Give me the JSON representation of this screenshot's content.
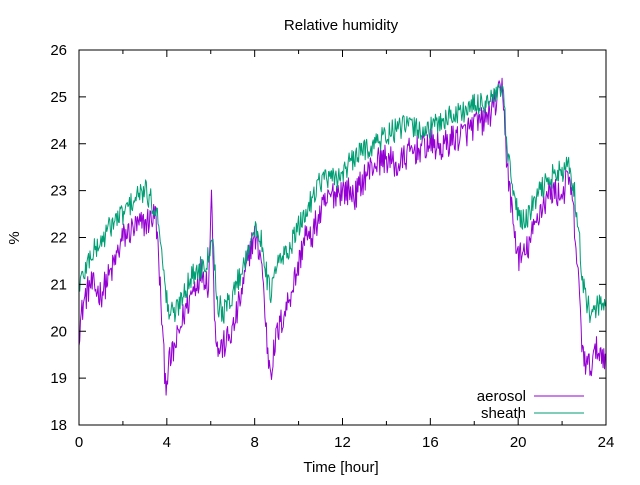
{
  "chart_data": {
    "type": "line",
    "title": "Relative humidity",
    "xlabel": "Time [hour]",
    "ylabel": "%",
    "xlim": [
      0,
      24
    ],
    "ylim": [
      18,
      26
    ],
    "xticks": [
      0,
      4,
      8,
      12,
      16,
      20,
      24
    ],
    "yticks": [
      18,
      19,
      20,
      21,
      22,
      23,
      24,
      25,
      26
    ],
    "grid": false,
    "legend_position": "bottom-right",
    "series": [
      {
        "name": "aerosol",
        "color": "#9400d3",
        "x": [
          0,
          0.2,
          0.5,
          1.0,
          1.5,
          2.0,
          2.5,
          3.0,
          3.5,
          3.75,
          3.85,
          3.95,
          4.1,
          4.4,
          4.8,
          5.2,
          5.6,
          5.9,
          6.05,
          6.15,
          6.3,
          6.6,
          7.0,
          7.5,
          7.8,
          8.0,
          8.3,
          8.5,
          8.6,
          8.75,
          9.0,
          9.5,
          10.0,
          10.3,
          10.5,
          10.8,
          11.2,
          11.5,
          11.8,
          12.2,
          12.6,
          13.0,
          13.5,
          14.0,
          14.5,
          15.0,
          15.5,
          16.0,
          16.5,
          17.0,
          17.5,
          18.0,
          18.5,
          19.0,
          19.3,
          19.5,
          19.8,
          20.0,
          20.3,
          20.6,
          21.0,
          21.5,
          22.0,
          22.3,
          22.5,
          22.7,
          22.9,
          23.1,
          23.3,
          23.6,
          24.0
        ],
        "y": [
          20.0,
          20.6,
          21.0,
          20.8,
          21.3,
          22.0,
          22.2,
          22.3,
          22.5,
          20.5,
          19.5,
          18.9,
          19.3,
          19.7,
          20.4,
          20.9,
          21.3,
          21.0,
          23.1,
          20.6,
          19.6,
          19.7,
          20.0,
          21.0,
          21.8,
          22.0,
          21.6,
          20.2,
          19.5,
          19.2,
          19.9,
          20.6,
          21.4,
          22.1,
          21.9,
          22.3,
          22.7,
          22.9,
          23.0,
          23.0,
          22.9,
          23.3,
          23.6,
          23.7,
          23.5,
          23.8,
          23.9,
          24.0,
          23.9,
          24.1,
          24.2,
          24.4,
          24.5,
          24.9,
          25.2,
          23.5,
          22.2,
          21.6,
          21.6,
          22.0,
          22.6,
          23.0,
          22.9,
          23.3,
          22.6,
          21.4,
          19.8,
          19.2,
          19.3,
          19.6,
          19.5
        ]
      },
      {
        "name": "sheath",
        "color": "#009e73",
        "x": [
          0,
          0.2,
          0.5,
          1.0,
          1.5,
          2.0,
          2.5,
          3.0,
          3.5,
          3.75,
          3.85,
          3.95,
          4.1,
          4.4,
          4.8,
          5.2,
          5.6,
          5.9,
          6.05,
          6.15,
          6.3,
          6.6,
          7.0,
          7.5,
          7.8,
          8.0,
          8.3,
          8.5,
          8.6,
          8.75,
          9.0,
          9.5,
          10.0,
          10.3,
          10.5,
          10.8,
          11.2,
          11.5,
          11.8,
          12.2,
          12.6,
          13.0,
          13.5,
          14.0,
          14.5,
          15.0,
          15.5,
          16.0,
          16.5,
          17.0,
          17.5,
          18.0,
          18.5,
          19.0,
          19.3,
          19.5,
          19.8,
          20.0,
          20.3,
          20.6,
          21.0,
          21.5,
          22.0,
          22.3,
          22.5,
          22.7,
          22.9,
          23.1,
          23.3,
          23.6,
          24.0
        ],
        "y": [
          21.0,
          21.2,
          21.6,
          21.9,
          22.3,
          22.5,
          22.8,
          23.0,
          22.6,
          22.0,
          21.2,
          20.8,
          20.4,
          20.4,
          20.9,
          21.2,
          21.4,
          21.6,
          22.2,
          21.6,
          20.6,
          20.4,
          20.8,
          21.4,
          22.0,
          22.1,
          22.0,
          21.4,
          21.0,
          20.8,
          21.4,
          21.7,
          22.2,
          22.5,
          22.7,
          23.1,
          23.3,
          23.2,
          23.3,
          23.5,
          23.7,
          23.9,
          24.0,
          24.2,
          24.3,
          24.4,
          24.3,
          24.3,
          24.5,
          24.6,
          24.7,
          24.8,
          24.9,
          25.0,
          25.2,
          23.8,
          22.9,
          22.5,
          22.3,
          22.6,
          23.0,
          23.3,
          23.4,
          23.5,
          23.2,
          22.4,
          21.3,
          20.6,
          20.4,
          20.5,
          20.6
        ]
      }
    ]
  }
}
